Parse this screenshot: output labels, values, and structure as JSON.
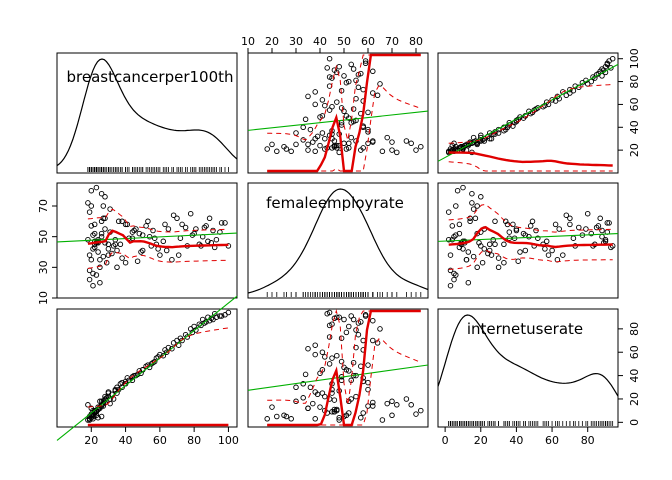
{
  "chart_data": {
    "type": "scatter",
    "variables": [
      "breastcancerper100th",
      "femaleemployrate",
      "internetuserate"
    ],
    "ranges": {
      "breastcancerper100th": [
        0,
        105
      ],
      "femaleemployrate": [
        10,
        85
      ],
      "internetuserate": [
        -4,
        97
      ]
    },
    "tick_labels": {
      "breastcancerper100th": [
        "20",
        "40",
        "60",
        "80",
        "100"
      ],
      "femaleemployrate": [
        "10",
        "20",
        "30",
        "40",
        "50",
        "60",
        "70",
        "80"
      ],
      "internetuserate": [
        "0",
        "20",
        "40",
        "60",
        "80"
      ]
    },
    "ticks": {
      "breastcancerper100th": [
        20,
        40,
        60,
        80,
        100
      ],
      "femaleemployrate": [
        10,
        20,
        30,
        40,
        50,
        60,
        70,
        80
      ],
      "internetuserate": [
        0,
        20,
        40,
        60,
        80
      ]
    },
    "left_axis_ticks": {
      "femaleemployrate": [
        10,
        30,
        50,
        70
      ]
    },
    "observations": {
      "breastcancerper100th": [
        24,
        22,
        20,
        19,
        21,
        25,
        28,
        23,
        21,
        18,
        22,
        26,
        30,
        27,
        20,
        19,
        24,
        33,
        38,
        44,
        49,
        52,
        57,
        31,
        35,
        28,
        22,
        26,
        40,
        46,
        58,
        63,
        70,
        85,
        88,
        92,
        80,
        75,
        68,
        60,
        55,
        50,
        45,
        42,
        36,
        30,
        25,
        23,
        21,
        20,
        19,
        22,
        24,
        27,
        29,
        34,
        37,
        41,
        48,
        53,
        59,
        65,
        72,
        78,
        83,
        87,
        90,
        95,
        98,
        100,
        28,
        32,
        26,
        20,
        18,
        22,
        24,
        27,
        31,
        35,
        44,
        50,
        56,
        62,
        67,
        73,
        79,
        84,
        89,
        93,
        25,
        21,
        23,
        19,
        26,
        30,
        38,
        47,
        54,
        64,
        71,
        76,
        81,
        86,
        91,
        96,
        23,
        28,
        34,
        40
      ],
      "femaleemployrate": [
        48,
        58,
        35,
        66,
        42,
        30,
        55,
        25,
        18,
        72,
        45,
        50,
        38,
        62,
        80,
        22,
        47,
        44,
        36,
        53,
        40,
        57,
        49,
        68,
        41,
        46,
        52,
        60,
        33,
        55,
        45,
        58,
        62,
        50,
        47,
        43,
        52,
        56,
        64,
        38,
        44,
        51,
        54,
        49,
        60,
        42,
        35,
        46,
        51,
        57,
        28,
        47,
        40,
        70,
        33,
        48,
        45,
        58,
        52,
        60,
        42,
        55,
        49,
        65,
        45,
        57,
        46,
        53,
        59,
        44,
        62,
        39,
        78,
        70,
        48,
        43,
        46,
        37,
        53,
        30,
        49,
        41,
        54,
        47,
        35,
        58,
        51,
        44,
        62,
        48,
        20,
        26,
        46,
        38,
        52,
        45,
        60,
        34,
        50,
        41,
        38,
        44,
        55,
        56,
        54,
        59,
        82,
        76,
        45,
        58
      ],
      "internetuserate": [
        4,
        8,
        12,
        2,
        10,
        18,
        22,
        6,
        3,
        15,
        9,
        5,
        26,
        14,
        7,
        5,
        11,
        20,
        30,
        36,
        42,
        48,
        52,
        16,
        25,
        19,
        8,
        14,
        33,
        40,
        55,
        62,
        70,
        88,
        90,
        93,
        82,
        75,
        68,
        58,
        50,
        45,
        40,
        36,
        28,
        22,
        12,
        9,
        6,
        4,
        3,
        10,
        13,
        18,
        21,
        27,
        33,
        38,
        44,
        49,
        56,
        64,
        72,
        80,
        84,
        86,
        89,
        91,
        92,
        94,
        17,
        24,
        15,
        6,
        2,
        8,
        11,
        16,
        20,
        30,
        39,
        45,
        51,
        57,
        63,
        70,
        77,
        83,
        87,
        90,
        13,
        5,
        9,
        3,
        18,
        25,
        34,
        41,
        47,
        60,
        66,
        73,
        79,
        85,
        88,
        91,
        10,
        20,
        28,
        35
      ]
    },
    "smooth_color": "#e00000",
    "lm_color": "#00b000"
  }
}
